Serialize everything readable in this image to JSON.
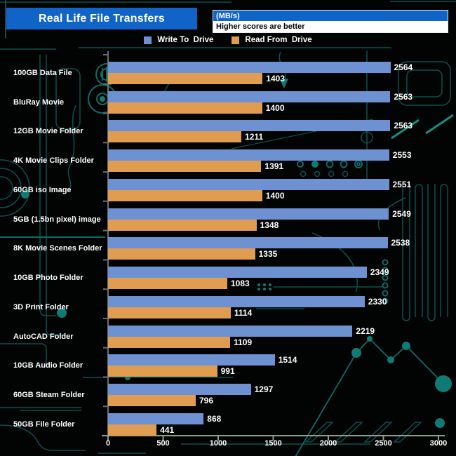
{
  "header": {
    "title": "Real Life File Transfers",
    "unit_label": "(MB/s)",
    "note": "Higher scores are better"
  },
  "legend": {
    "write_label": "Write To  Drive",
    "read_label": "Read From  Drive"
  },
  "chart_data": {
    "type": "bar",
    "orientation": "horizontal",
    "title": "Real Life File Transfers",
    "unit": "MB/s",
    "subtitle": "Higher scores are better",
    "xlim": [
      0,
      3000
    ],
    "x_ticks": [
      0,
      500,
      1000,
      1500,
      2000,
      2500,
      3000
    ],
    "grid": false,
    "legend_position": "top",
    "value_labels": true,
    "categories": [
      "100GB Data File",
      "BluRay Movie",
      "12GB Movie Folder",
      "4K Movie Clips Folder",
      "60GB iso Image",
      "5GB (1.5bn pixel) image",
      "8K Movie Scenes Folder",
      "10GB Photo Folder",
      "3D Print Folder",
      "AutoCAD Folder",
      "10GB Audio Folder",
      "60GB Steam Folder",
      "50GB File Folder"
    ],
    "series": [
      {
        "name": "Write To Drive",
        "color": "#6e91d2",
        "values": [
          2564,
          2563,
          2563,
          2553,
          2551,
          2549,
          2538,
          2349,
          2330,
          2219,
          1514,
          1297,
          868
        ]
      },
      {
        "name": "Read From Drive",
        "color": "#e09c50",
        "values": [
          1403,
          1400,
          1211,
          1391,
          1400,
          1348,
          1335,
          1083,
          1114,
          1109,
          991,
          796,
          441
        ]
      }
    ]
  },
  "colors": {
    "background": "#020303",
    "title_bar_blue": "#1064c8",
    "write_bar": "#6e91d2",
    "read_bar": "#e09c50",
    "axis_gray": "#6e6e6e",
    "axis_light": "#8f9e8f",
    "circuit_dim": "#0c514d",
    "circuit_bright": "#149083"
  }
}
